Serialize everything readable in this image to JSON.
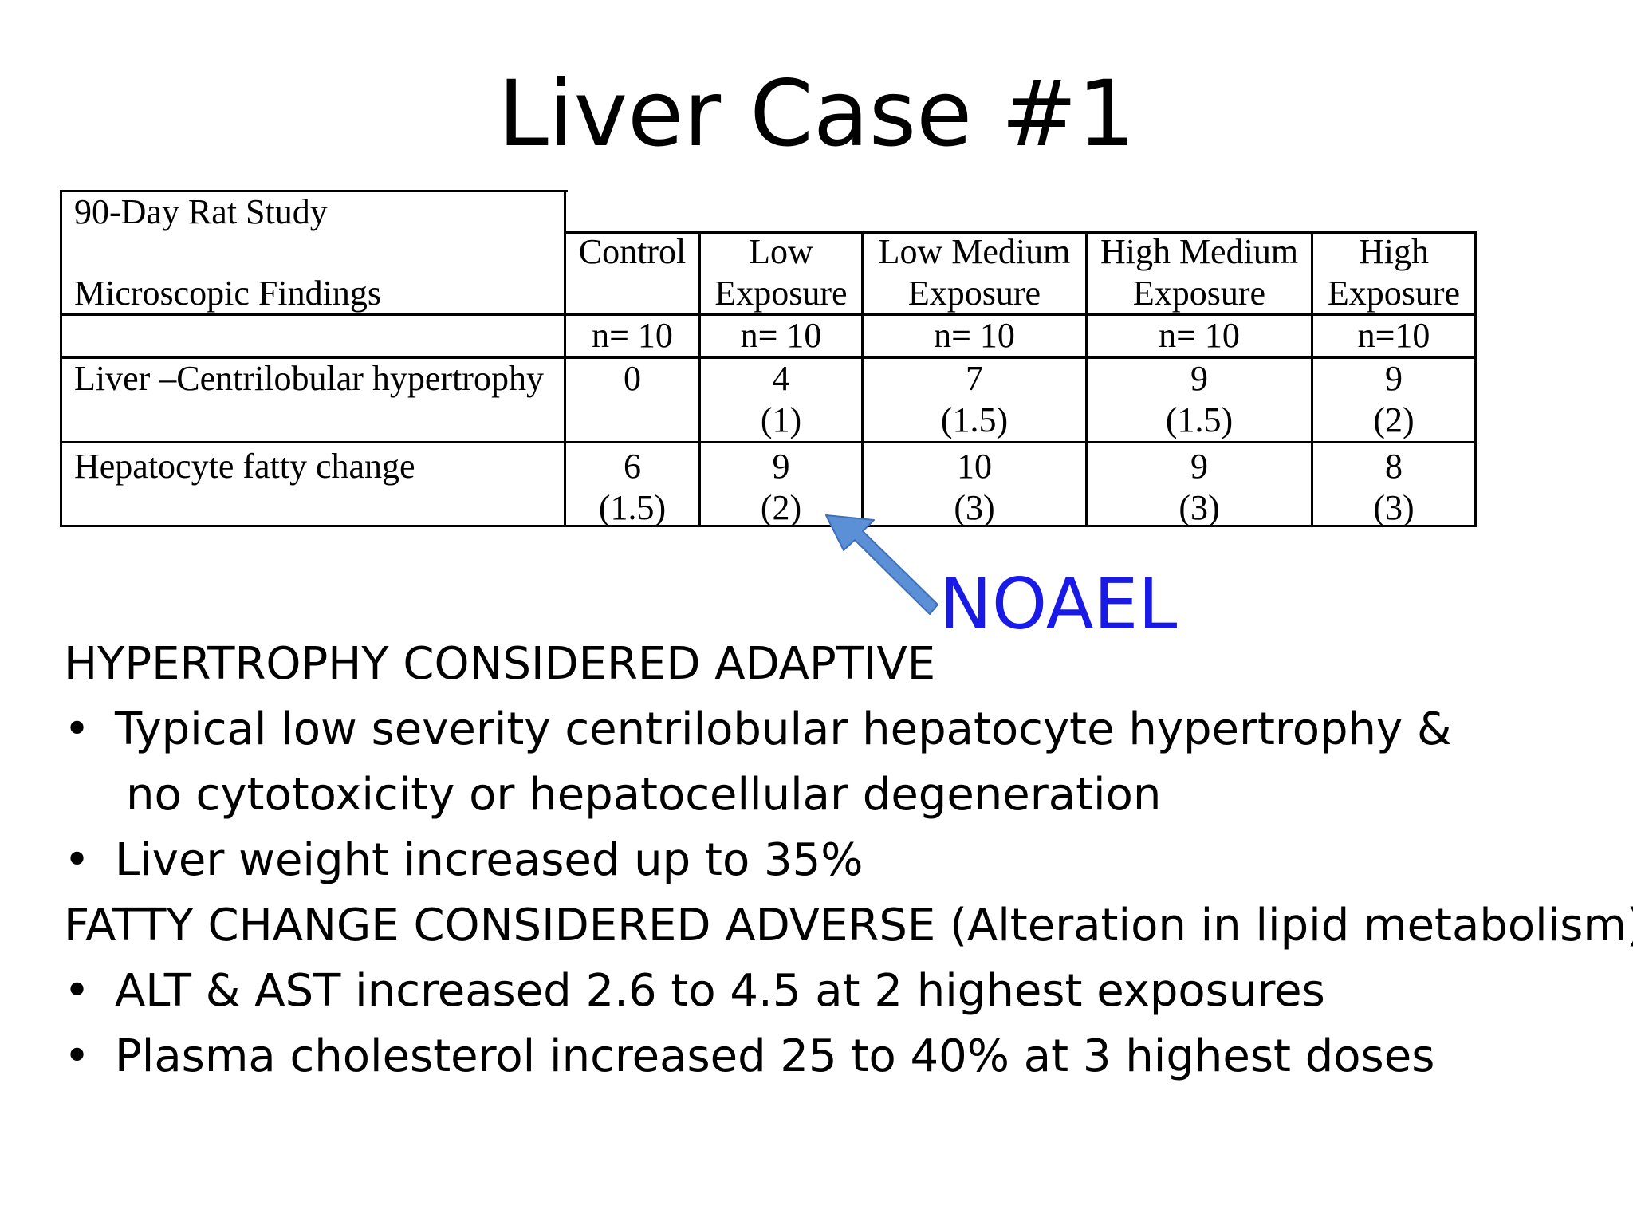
{
  "title": "Liver Case #1",
  "table": {
    "study": "90-Day Rat Study",
    "findings_label": "Microscopic Findings",
    "columns": [
      [
        "Control"
      ],
      [
        "Low",
        "Exposure"
      ],
      [
        "Low Medium",
        "Exposure"
      ],
      [
        "High Medium",
        "Exposure"
      ],
      [
        "High",
        "Exposure"
      ]
    ],
    "n_values": [
      "n= 10",
      "n= 10",
      "n= 10",
      "n= 10",
      "n=10"
    ],
    "rows": [
      {
        "label": "Liver –Centrilobular hypertrophy",
        "cells": [
          [
            "0",
            ""
          ],
          [
            "4",
            "(1)"
          ],
          [
            "7",
            "(1.5)"
          ],
          [
            "9",
            "(1.5)"
          ],
          [
            "9",
            "(2)"
          ]
        ]
      },
      {
        "label": "Hepatocyte fatty change",
        "cells": [
          [
            "6",
            "(1.5)"
          ],
          [
            "9",
            "(2)"
          ],
          [
            "10",
            "(3)"
          ],
          [
            "9",
            "(3)"
          ],
          [
            "8",
            "(3)"
          ]
        ]
      }
    ]
  },
  "callout": {
    "label": "NOAEL",
    "color": "#1a1ae6",
    "arrow_color": "#5b8fd6"
  },
  "body": {
    "heading1": "HYPERTROPHY CONSIDERED ADAPTIVE",
    "bullet1a_line1": "Typical low severity centrilobular hepatocyte hypertrophy &",
    "bullet1a_line2": "no cytotoxicity or hepatocellular degeneration",
    "bullet1b": "Liver weight increased up to 35%",
    "heading2": "FATTY CHANGE CONSIDERED ADVERSE (Alteration in lipid metabolism)",
    "bullet2a": "ALT & AST increased 2.6 to 4.5 at 2 highest exposures",
    "bullet2b": "Plasma cholesterol increased 25 to 40% at 3 highest doses",
    "bullet_char": "•"
  }
}
